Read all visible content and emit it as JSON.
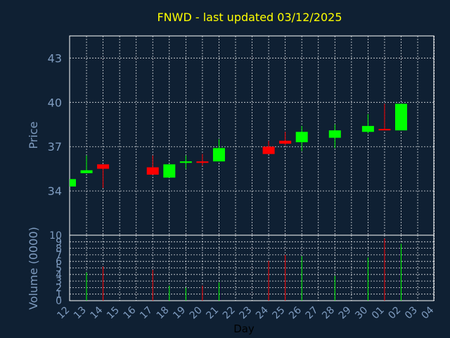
{
  "chart_data": {
    "type": "candlestick",
    "title": "FNWD - last updated 03/12/2025",
    "price_axis": {
      "label": "Price",
      "ylim": [
        31.0,
        44.5
      ],
      "ticks": [
        {
          "v": 34,
          "label": "34"
        },
        {
          "v": 37,
          "label": "37"
        },
        {
          "v": 40,
          "label": "40"
        },
        {
          "v": 43,
          "label": "43"
        }
      ]
    },
    "volume_axis": {
      "label": "Volume (0000)",
      "ylim": [
        0,
        10
      ],
      "ticks": [
        {
          "v": 0,
          "label": "0"
        },
        {
          "v": 1,
          "label": "1"
        },
        {
          "v": 2,
          "label": "2"
        },
        {
          "v": 3,
          "label": "3"
        },
        {
          "v": 4,
          "label": "4"
        },
        {
          "v": 5,
          "label": "5"
        },
        {
          "v": 6,
          "label": "6"
        },
        {
          "v": 7,
          "label": "7"
        },
        {
          "v": 8,
          "label": "8"
        },
        {
          "v": 9,
          "label": "9"
        },
        {
          "v": 10,
          "label": "10"
        }
      ]
    },
    "x_axis": {
      "label": "Day",
      "ticks": [
        "12",
        "13",
        "14",
        "15",
        "16",
        "17",
        "18",
        "19",
        "20",
        "21",
        "22",
        "23",
        "24",
        "25",
        "26",
        "27",
        "28",
        "29",
        "30",
        "01",
        "02",
        "03",
        "04"
      ]
    },
    "grid": true,
    "colors": {
      "up": "#00ff00",
      "down": "#ff0000",
      "title": "#ffff00",
      "axis_text": "#7f9cc0",
      "background": "#0f2033",
      "grid": "#ffffff"
    },
    "candles": [
      {
        "day": 0.0,
        "open": 34.3,
        "high": 34.8,
        "low": 34.3,
        "close": 34.8,
        "volume": 0.0
      },
      {
        "day": 1.0,
        "open": 35.2,
        "high": 36.4,
        "low": 35.2,
        "close": 35.4,
        "volume": 4.3
      },
      {
        "day": 2.0,
        "open": 35.8,
        "high": 35.8,
        "low": 34.2,
        "close": 35.5,
        "volume": 5.2
      },
      {
        "day": 5.0,
        "open": 35.6,
        "high": 36.4,
        "low": 35.1,
        "close": 35.1,
        "volume": 4.7
      },
      {
        "day": 6.0,
        "open": 34.9,
        "high": 35.8,
        "low": 34.9,
        "close": 35.8,
        "volume": 2.3
      },
      {
        "day": 7.0,
        "open": 35.9,
        "high": 36.4,
        "low": 35.5,
        "close": 36.0,
        "volume": 2.0
      },
      {
        "day": 8.0,
        "open": 36.0,
        "high": 36.5,
        "low": 35.7,
        "close": 35.9,
        "volume": 2.3
      },
      {
        "day": 9.0,
        "open": 36.0,
        "high": 37.5,
        "low": 36.0,
        "close": 36.9,
        "volume": 2.8
      },
      {
        "day": 12.0,
        "open": 37.0,
        "high": 37.4,
        "low": 36.5,
        "close": 36.5,
        "volume": 6.1
      },
      {
        "day": 13.0,
        "open": 37.4,
        "high": 38.0,
        "low": 37.1,
        "close": 37.2,
        "volume": 7.0
      },
      {
        "day": 14.0,
        "open": 37.3,
        "high": 38.4,
        "low": 36.7,
        "close": 38.0,
        "volume": 6.8
      },
      {
        "day": 16.0,
        "open": 37.6,
        "high": 38.5,
        "low": 36.9,
        "close": 38.1,
        "volume": 3.8
      },
      {
        "day": 18.0,
        "open": 38.0,
        "high": 39.2,
        "low": 37.9,
        "close": 38.4,
        "volume": 6.6
      },
      {
        "day": 19.0,
        "open": 38.2,
        "high": 39.9,
        "low": 38.1,
        "close": 38.1,
        "volume": 9.5
      },
      {
        "day": 20.0,
        "open": 38.1,
        "high": 39.9,
        "low": 38.1,
        "close": 39.9,
        "volume": 8.7
      }
    ]
  }
}
